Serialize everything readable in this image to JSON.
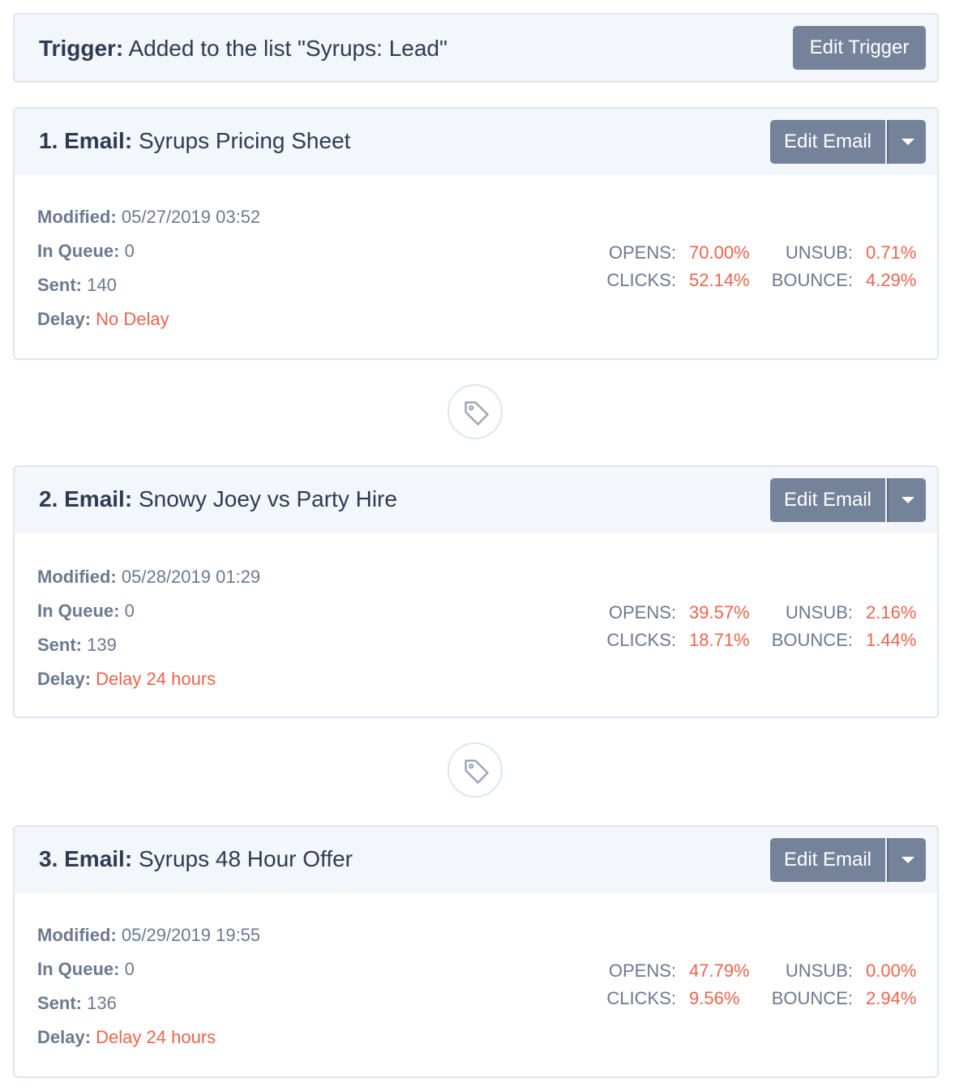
{
  "trigger": {
    "label": "Trigger:",
    "text": "Added to the list \"Syrups: Lead\"",
    "button": "Edit Trigger"
  },
  "emails": [
    {
      "number_label": "1. Email:",
      "name": "Syrups Pricing Sheet",
      "edit_label": "Edit Email",
      "modified_label": "Modified:",
      "modified": "05/27/2019 03:52",
      "queue_label": "In Queue:",
      "queue": "0",
      "sent_label": "Sent:",
      "sent": "140",
      "delay_label": "Delay:",
      "delay": "No Delay",
      "opens_label": "OPENS:",
      "opens": "70.00%",
      "clicks_label": "CLICKS:",
      "clicks": "52.14%",
      "unsub_label": "UNSUB:",
      "unsub": "0.71%",
      "bounce_label": "BOUNCE:",
      "bounce": "4.29%"
    },
    {
      "number_label": "2. Email:",
      "name": "Snowy Joey vs Party Hire",
      "edit_label": "Edit Email",
      "modified_label": "Modified:",
      "modified": "05/28/2019 01:29",
      "queue_label": "In Queue:",
      "queue": "0",
      "sent_label": "Sent:",
      "sent": "139",
      "delay_label": "Delay:",
      "delay": "Delay 24 hours",
      "opens_label": "OPENS:",
      "opens": "39.57%",
      "clicks_label": "CLICKS:",
      "clicks": "18.71%",
      "unsub_label": "UNSUB:",
      "unsub": "2.16%",
      "bounce_label": "BOUNCE:",
      "bounce": "1.44%"
    },
    {
      "number_label": "3. Email:",
      "name": "Syrups 48 Hour Offer",
      "edit_label": "Edit Email",
      "modified_label": "Modified:",
      "modified": "05/29/2019 19:55",
      "queue_label": "In Queue:",
      "queue": "0",
      "sent_label": "Sent:",
      "sent": "136",
      "delay_label": "Delay:",
      "delay": "Delay 24 hours",
      "opens_label": "OPENS:",
      "opens": "47.79%",
      "clicks_label": "CLICKS:",
      "clicks": "9.56%",
      "unsub_label": "UNSUB:",
      "unsub": "0.00%",
      "bounce_label": "BOUNCE:",
      "bounce": "2.94%"
    }
  ],
  "connectors": [
    {
      "icon": "tag-icon"
    },
    {
      "icon": "tag-icon"
    }
  ],
  "colors": {
    "accent_red": "#f0634c",
    "button": "#74839a",
    "header_bg": "#f3f6fa",
    "border": "#dfe5ee"
  }
}
